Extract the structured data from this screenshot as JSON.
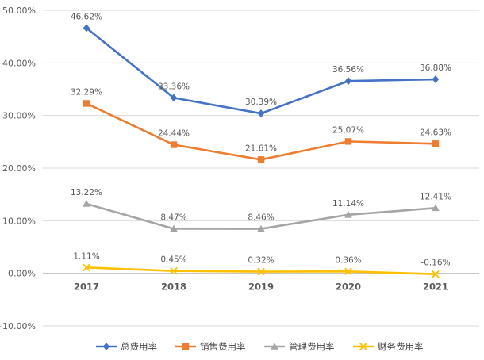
{
  "chart_data": {
    "type": "line",
    "title": "",
    "xlabel": "",
    "ylabel": "",
    "categories": [
      "2017",
      "2018",
      "2019",
      "2020",
      "2021"
    ],
    "ylim": [
      -10,
      50
    ],
    "yticks": [
      -10,
      0,
      10,
      20,
      30,
      40,
      50
    ],
    "ytick_labels": [
      "-10.00%",
      "0.00%",
      "10.00%",
      "20.00%",
      "30.00%",
      "40.00%",
      "50.00%"
    ],
    "grid": true,
    "legend_position": "bottom",
    "series": [
      {
        "name": "总费用率",
        "color": "#4472c4",
        "marker": "diamond",
        "values": [
          46.62,
          33.36,
          30.39,
          36.56,
          36.88
        ],
        "labels": [
          "46.62%",
          "33.36%",
          "30.39%",
          "36.56%",
          "36.88%"
        ]
      },
      {
        "name": "销售费用率",
        "color": "#ed7d31",
        "marker": "square",
        "values": [
          32.29,
          24.44,
          21.61,
          25.07,
          24.63
        ],
        "labels": [
          "32.29%",
          "24.44%",
          "21.61%",
          "25.07%",
          "24.63%"
        ]
      },
      {
        "name": "管理费用率",
        "color": "#a5a5a5",
        "marker": "triangle",
        "values": [
          13.22,
          8.47,
          8.46,
          11.14,
          12.41
        ],
        "labels": [
          "13.22%",
          "8.47%",
          "8.46%",
          "11.14%",
          "12.41%"
        ]
      },
      {
        "name": "财务费用率",
        "color": "#ffc000",
        "marker": "x",
        "values": [
          1.11,
          0.45,
          0.32,
          0.36,
          -0.16
        ],
        "labels": [
          "1.11%",
          "0.45%",
          "0.32%",
          "0.36%",
          "-0.16%"
        ]
      }
    ]
  }
}
